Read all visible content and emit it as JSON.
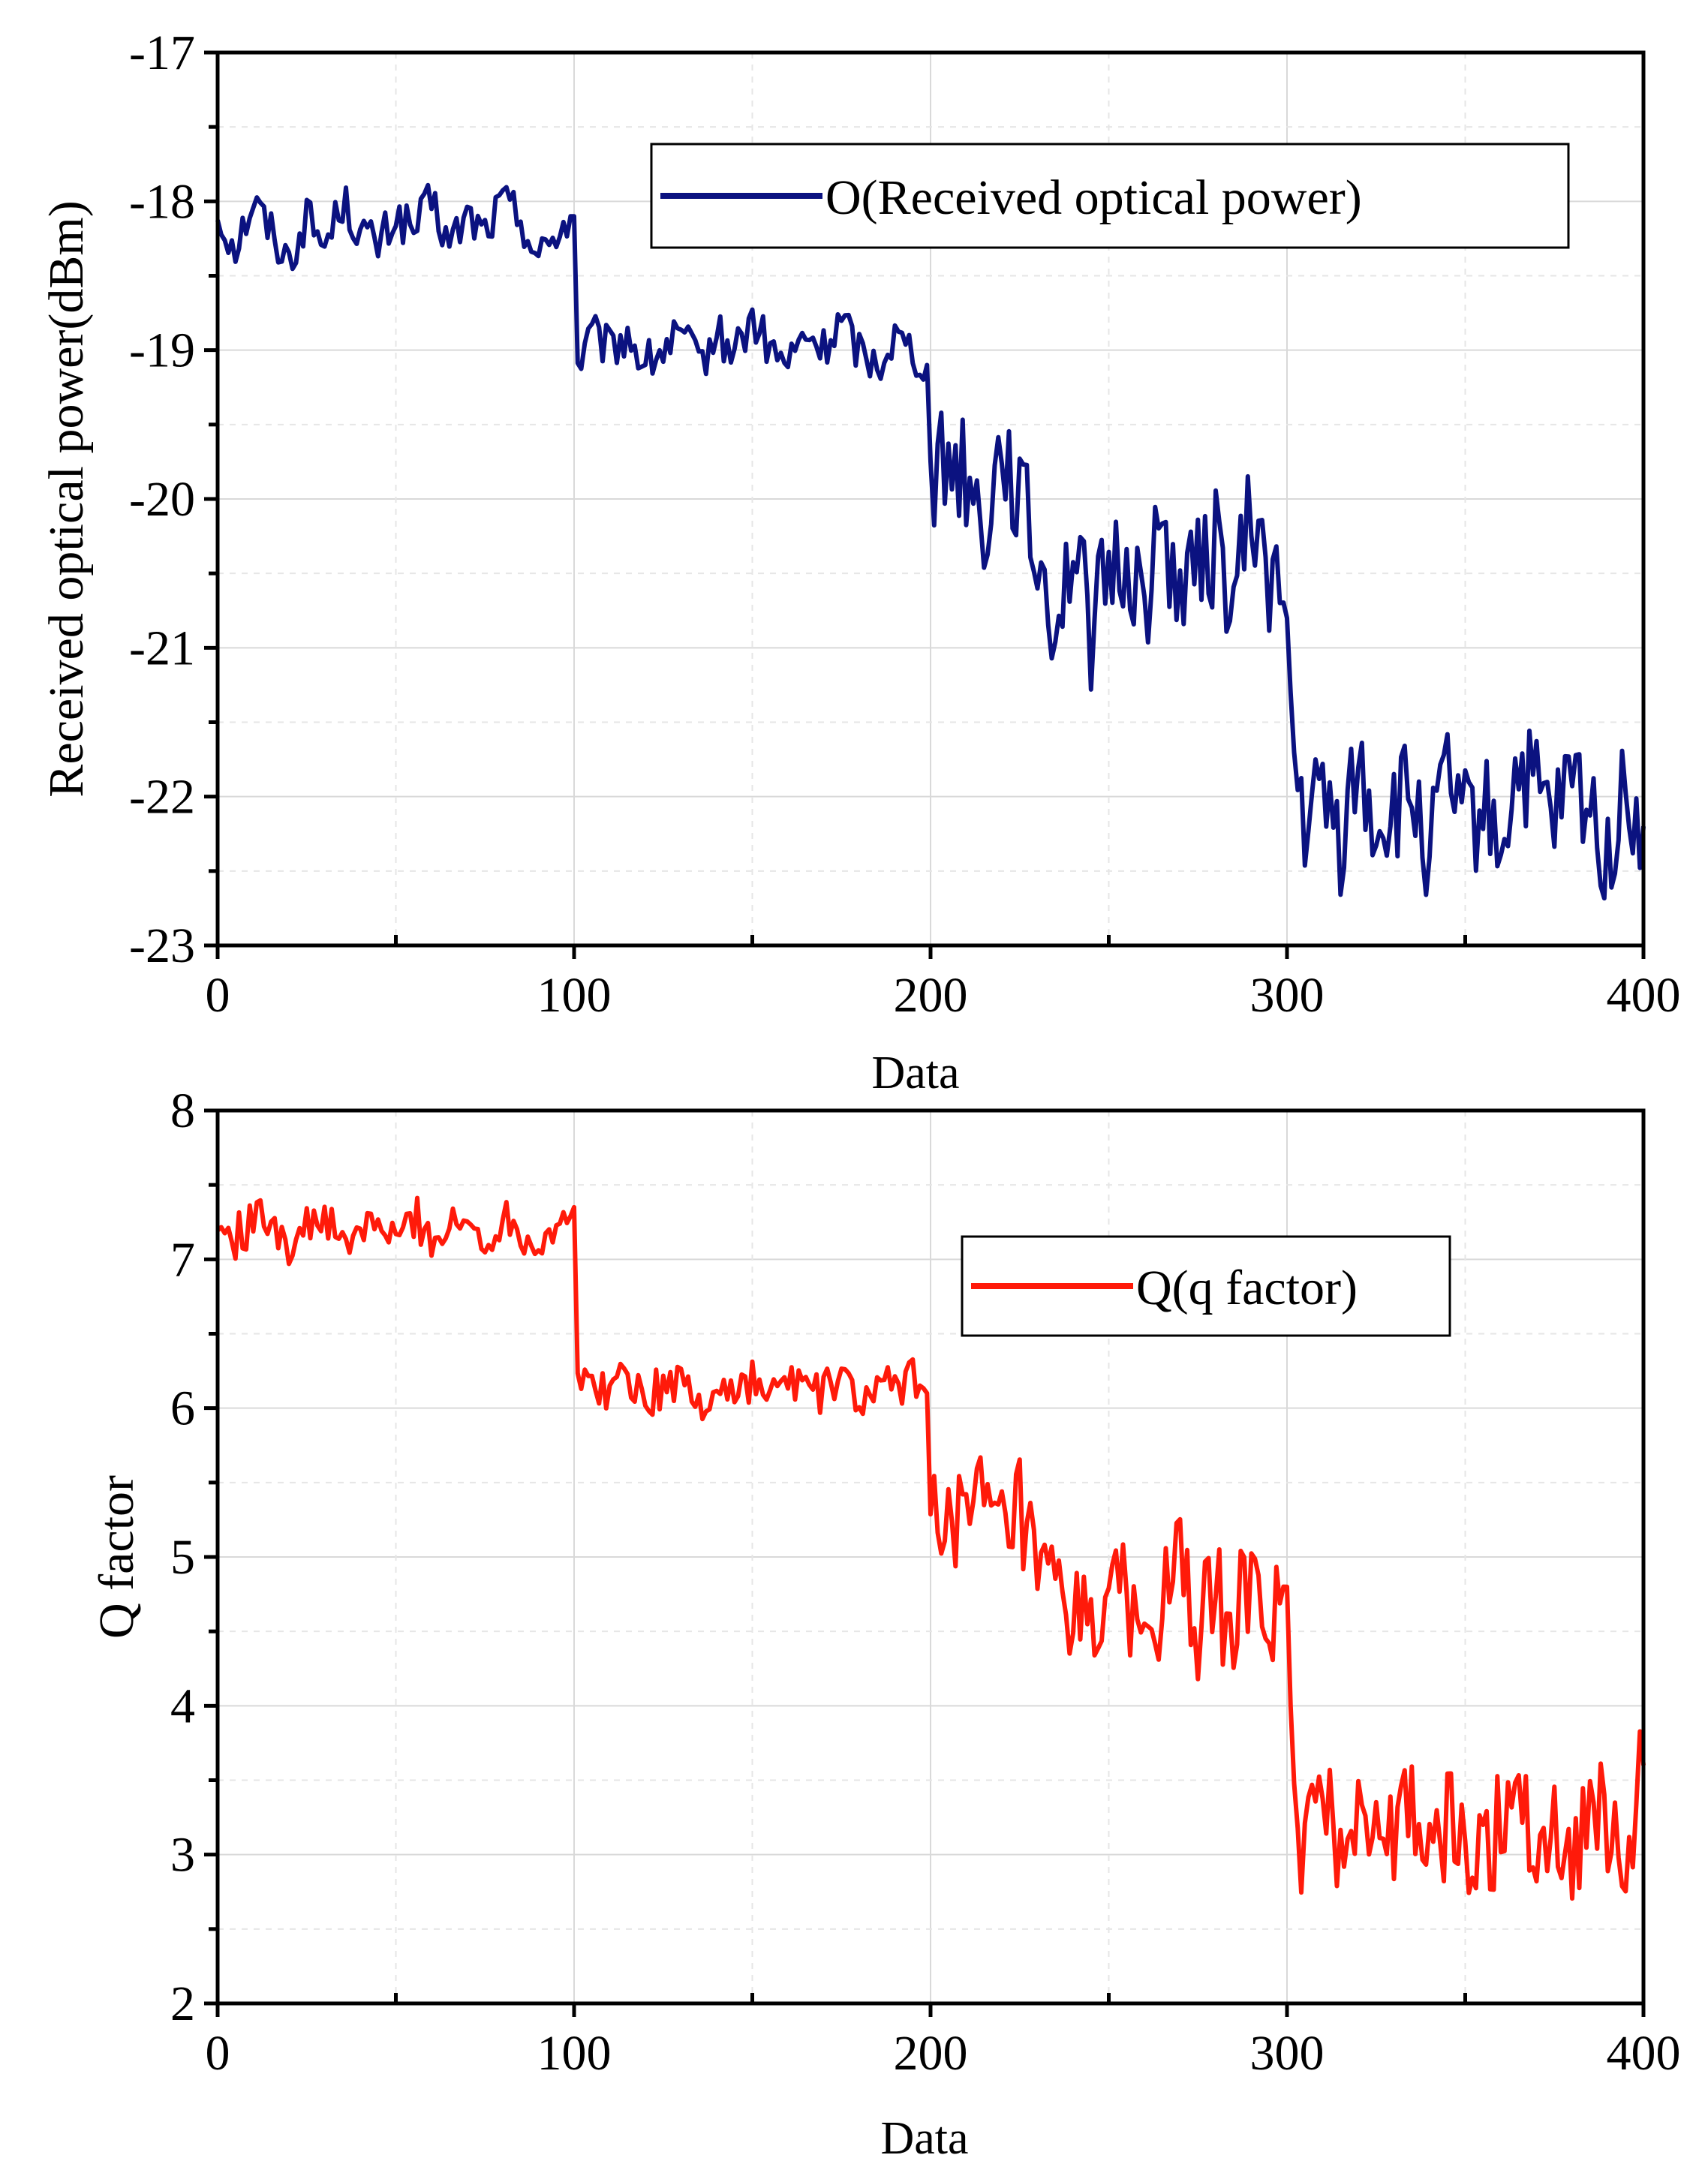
{
  "chart_data": [
    {
      "type": "line",
      "title": "",
      "xlabel": "Data",
      "ylabel": "Received optical power(dBm)",
      "xlim": [
        0,
        400
      ],
      "ylim": [
        -23,
        -17
      ],
      "x_ticks": [
        0,
        100,
        200,
        300,
        400
      ],
      "x_tick_labels": [
        "0",
        "100",
        "200",
        "300",
        "400"
      ],
      "y_ticks": [
        -23,
        -22,
        -21,
        -20,
        -19,
        -18,
        -17
      ],
      "y_tick_labels": [
        "-23",
        "-22",
        "-21",
        "-20",
        "-19",
        "-18",
        "-17"
      ],
      "grid": true,
      "legend_position": "top-right",
      "series": [
        {
          "name": "O(Received optical power)",
          "color": "#0b1280",
          "x": [
            0,
            5,
            10,
            15,
            20,
            25,
            30,
            35,
            40,
            45,
            50,
            55,
            60,
            65,
            70,
            75,
            80,
            85,
            90,
            95,
            100,
            101,
            105,
            110,
            115,
            120,
            125,
            130,
            135,
            140,
            145,
            150,
            155,
            160,
            165,
            170,
            175,
            180,
            185,
            190,
            195,
            199,
            200,
            205,
            210,
            215,
            220,
            225,
            230,
            235,
            240,
            245,
            250,
            255,
            260,
            265,
            270,
            275,
            280,
            285,
            290,
            295,
            300,
            302,
            305,
            310,
            315,
            320,
            325,
            330,
            335,
            340,
            345,
            350,
            355,
            360,
            365,
            370,
            375,
            380,
            385,
            390,
            395,
            400
          ],
          "y": [
            -18.1,
            -18.3,
            -18.0,
            -18.2,
            -18.4,
            -18.1,
            -18.3,
            -18.0,
            -18.2,
            -18.3,
            -18.1,
            -18.2,
            -18.0,
            -18.3,
            -18.1,
            -18.2,
            -18.0,
            -18.1,
            -18.4,
            -18.2,
            -18.1,
            -19.1,
            -18.9,
            -19.0,
            -18.9,
            -19.1,
            -19.0,
            -18.9,
            -19.1,
            -18.9,
            -19.0,
            -18.8,
            -19.0,
            -19.1,
            -18.9,
            -19.0,
            -18.8,
            -19.0,
            -19.1,
            -18.9,
            -19.0,
            -19.1,
            -19.9,
            -19.7,
            -19.8,
            -20.2,
            -19.6,
            -20.0,
            -20.4,
            -20.8,
            -20.3,
            -20.9,
            -20.5,
            -20.4,
            -20.7,
            -20.2,
            -20.6,
            -20.5,
            -20.3,
            -20.7,
            -20.1,
            -20.5,
            -20.8,
            -21.8,
            -22.2,
            -22.0,
            -22.3,
            -21.8,
            -22.2,
            -22.1,
            -22.0,
            -22.4,
            -21.9,
            -22.2,
            -22.1,
            -22.3,
            -21.8,
            -22.0,
            -22.2,
            -21.9,
            -22.1,
            -22.4,
            -22.0,
            -22.2
          ],
          "values_note_marker": ""
        }
      ]
    },
    {
      "type": "line",
      "title": "",
      "xlabel": "Data",
      "ylabel": "Q factor",
      "xlim": [
        0,
        400
      ],
      "ylim": [
        2,
        8
      ],
      "x_ticks": [
        0,
        100,
        200,
        300,
        400
      ],
      "x_tick_labels": [
        "0",
        "100",
        "200",
        "300",
        "400"
      ],
      "y_ticks": [
        2,
        3,
        4,
        5,
        6,
        7,
        8
      ],
      "y_tick_labels": [
        "2",
        "3",
        "4",
        "5",
        "6",
        "7",
        "8"
      ],
      "grid": true,
      "legend_position": "top-right",
      "series": [
        {
          "name": "Q(q factor)",
          "color": "#ff1a0a",
          "x": [
            0,
            5,
            10,
            15,
            20,
            25,
            30,
            35,
            40,
            45,
            50,
            55,
            60,
            65,
            70,
            75,
            80,
            85,
            90,
            95,
            100,
            101,
            105,
            110,
            115,
            120,
            125,
            130,
            135,
            140,
            145,
            150,
            155,
            160,
            165,
            170,
            175,
            180,
            185,
            190,
            195,
            199,
            200,
            205,
            210,
            215,
            220,
            225,
            230,
            235,
            240,
            245,
            250,
            255,
            260,
            265,
            270,
            275,
            280,
            285,
            290,
            295,
            300,
            302,
            305,
            310,
            315,
            320,
            325,
            330,
            335,
            340,
            345,
            350,
            355,
            360,
            365,
            370,
            375,
            380,
            385,
            390,
            395,
            400
          ],
          "y": [
            7.2,
            7.15,
            7.25,
            7.3,
            7.1,
            7.2,
            7.3,
            7.05,
            7.2,
            7.25,
            7.1,
            7.3,
            7.15,
            7.2,
            7.25,
            7.1,
            7.3,
            7.2,
            7.1,
            7.25,
            7.35,
            6.1,
            6.2,
            6.1,
            6.25,
            6.05,
            6.15,
            6.2,
            6.0,
            6.15,
            6.1,
            6.2,
            6.05,
            6.2,
            6.15,
            6.1,
            6.2,
            6.05,
            6.1,
            6.15,
            6.2,
            6.1,
            5.3,
            5.4,
            5.2,
            5.35,
            5.1,
            5.3,
            4.8,
            4.75,
            4.5,
            4.7,
            4.6,
            4.8,
            4.4,
            4.7,
            4.9,
            4.5,
            4.7,
            4.6,
            4.8,
            4.5,
            4.8,
            3.2,
            3.1,
            3.3,
            3.0,
            3.4,
            3.2,
            3.1,
            3.3,
            3.0,
            3.2,
            3.1,
            2.9,
            3.3,
            3.5,
            3.1,
            3.2,
            3.0,
            3.4,
            3.2,
            2.9,
            3.6
          ]
        }
      ]
    }
  ]
}
